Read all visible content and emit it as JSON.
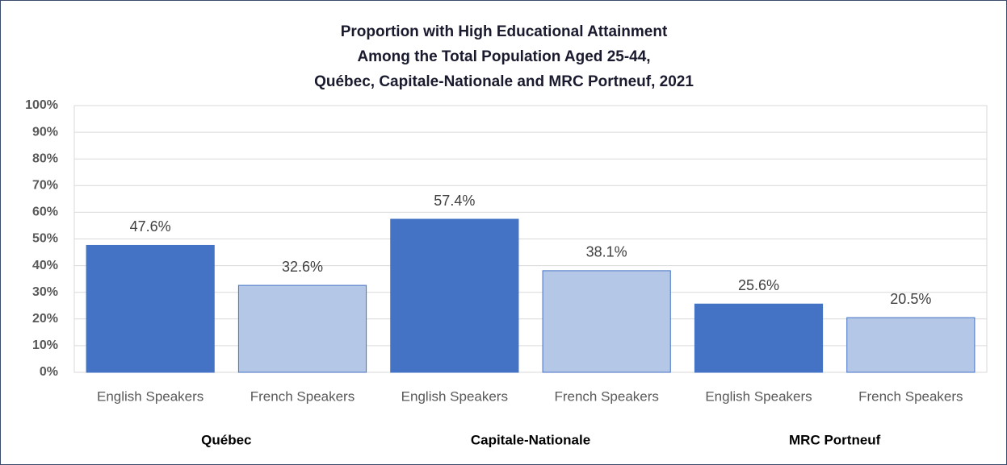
{
  "chart_data": {
    "type": "bar",
    "title": [
      "Proportion with High Educational  Attainment",
      "Among the Total Population Aged 25-44,",
      "Québec, Capitale-Nationale and MRC Portneuf, 2021"
    ],
    "categories": [
      "English Speakers",
      "French Speakers",
      "English Speakers",
      "French Speakers",
      "English Speakers",
      "French Speakers"
    ],
    "groups": [
      "Québec",
      "Capitale-Nationale",
      "MRC Portneuf"
    ],
    "values": [
      47.6,
      32.6,
      57.4,
      38.1,
      25.6,
      20.5
    ],
    "value_labels": [
      "47.6%",
      "32.6%",
      "57.4%",
      "38.1%",
      "25.6%",
      "20.5%"
    ],
    "colors": [
      "#4472c4",
      "#b4c7e7",
      "#4472c4",
      "#b4c7e7",
      "#4472c4",
      "#b4c7e7"
    ],
    "edgecolor": "#4472c4",
    "ylim": [
      0,
      100
    ],
    "yticks": [
      {
        "value": 0,
        "label": "0%"
      },
      {
        "value": 10,
        "label": "10%"
      },
      {
        "value": 20,
        "label": "20%"
      },
      {
        "value": 30,
        "label": "30%"
      },
      {
        "value": 40,
        "label": "40%"
      },
      {
        "value": 50,
        "label": "50%"
      },
      {
        "value": 60,
        "label": "60%"
      },
      {
        "value": 70,
        "label": "70%"
      },
      {
        "value": 80,
        "label": "80%"
      },
      {
        "value": 90,
        "label": "90%"
      },
      {
        "value": 100,
        "label": "100%"
      }
    ],
    "grid": true
  }
}
